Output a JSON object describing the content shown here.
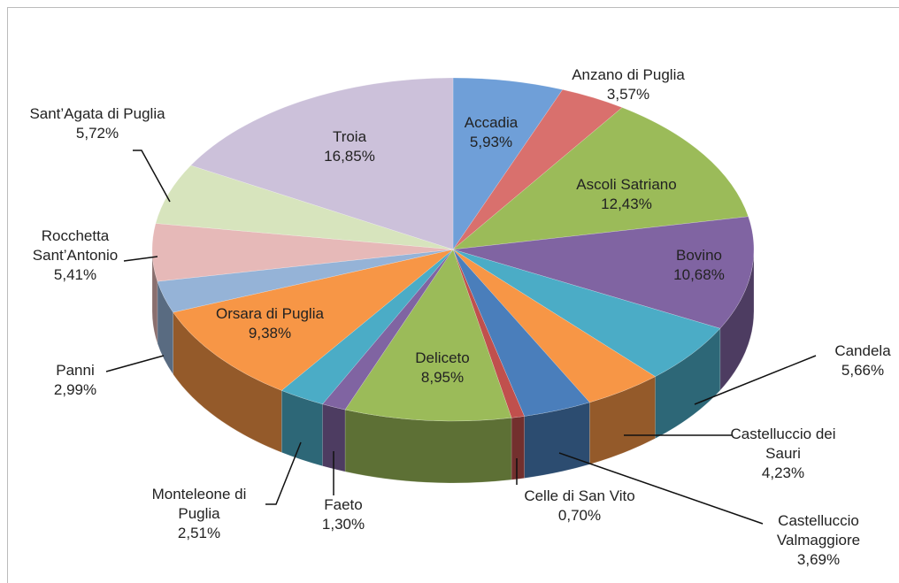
{
  "chart_data": {
    "type": "pie3d",
    "categories": [
      "Accadia",
      "Anzano di Puglia",
      "Ascoli Satriano",
      "Bovino",
      "Candela",
      "Castelluccio dei Sauri",
      "Castelluccio Valmaggiore",
      "Celle di San Vito",
      "Deliceto",
      "Faeto",
      "Monteleone di Puglia",
      "Orsara di Puglia",
      "Panni",
      "Rocchetta Sant’Antonio",
      "Sant’Agata di Puglia",
      "Troia"
    ],
    "values": [
      5.93,
      3.57,
      12.43,
      10.68,
      5.66,
      4.23,
      3.69,
      0.7,
      8.95,
      1.3,
      2.51,
      9.38,
      2.99,
      5.41,
      5.72,
      16.85
    ],
    "value_labels": [
      "5,93%",
      "3,57%",
      "12,43%",
      "10,68%",
      "5,66%",
      "4,23%",
      "3,69%",
      "0,70%",
      "8,95%",
      "1,30%",
      "2,51%",
      "9,38%",
      "2,99%",
      "5,41%",
      "5,72%",
      "16,85%"
    ],
    "colors": [
      "#6f9fd8",
      "#d9706d",
      "#9bbb59",
      "#8064a2",
      "#4bacc6",
      "#f79646",
      "#4a7ebb",
      "#c0504d",
      "#9bbb59",
      "#8064a2",
      "#4bacc6",
      "#f79646",
      "#95b3d7",
      "#e6b9b8",
      "#d7e4bd",
      "#ccc1da"
    ]
  }
}
